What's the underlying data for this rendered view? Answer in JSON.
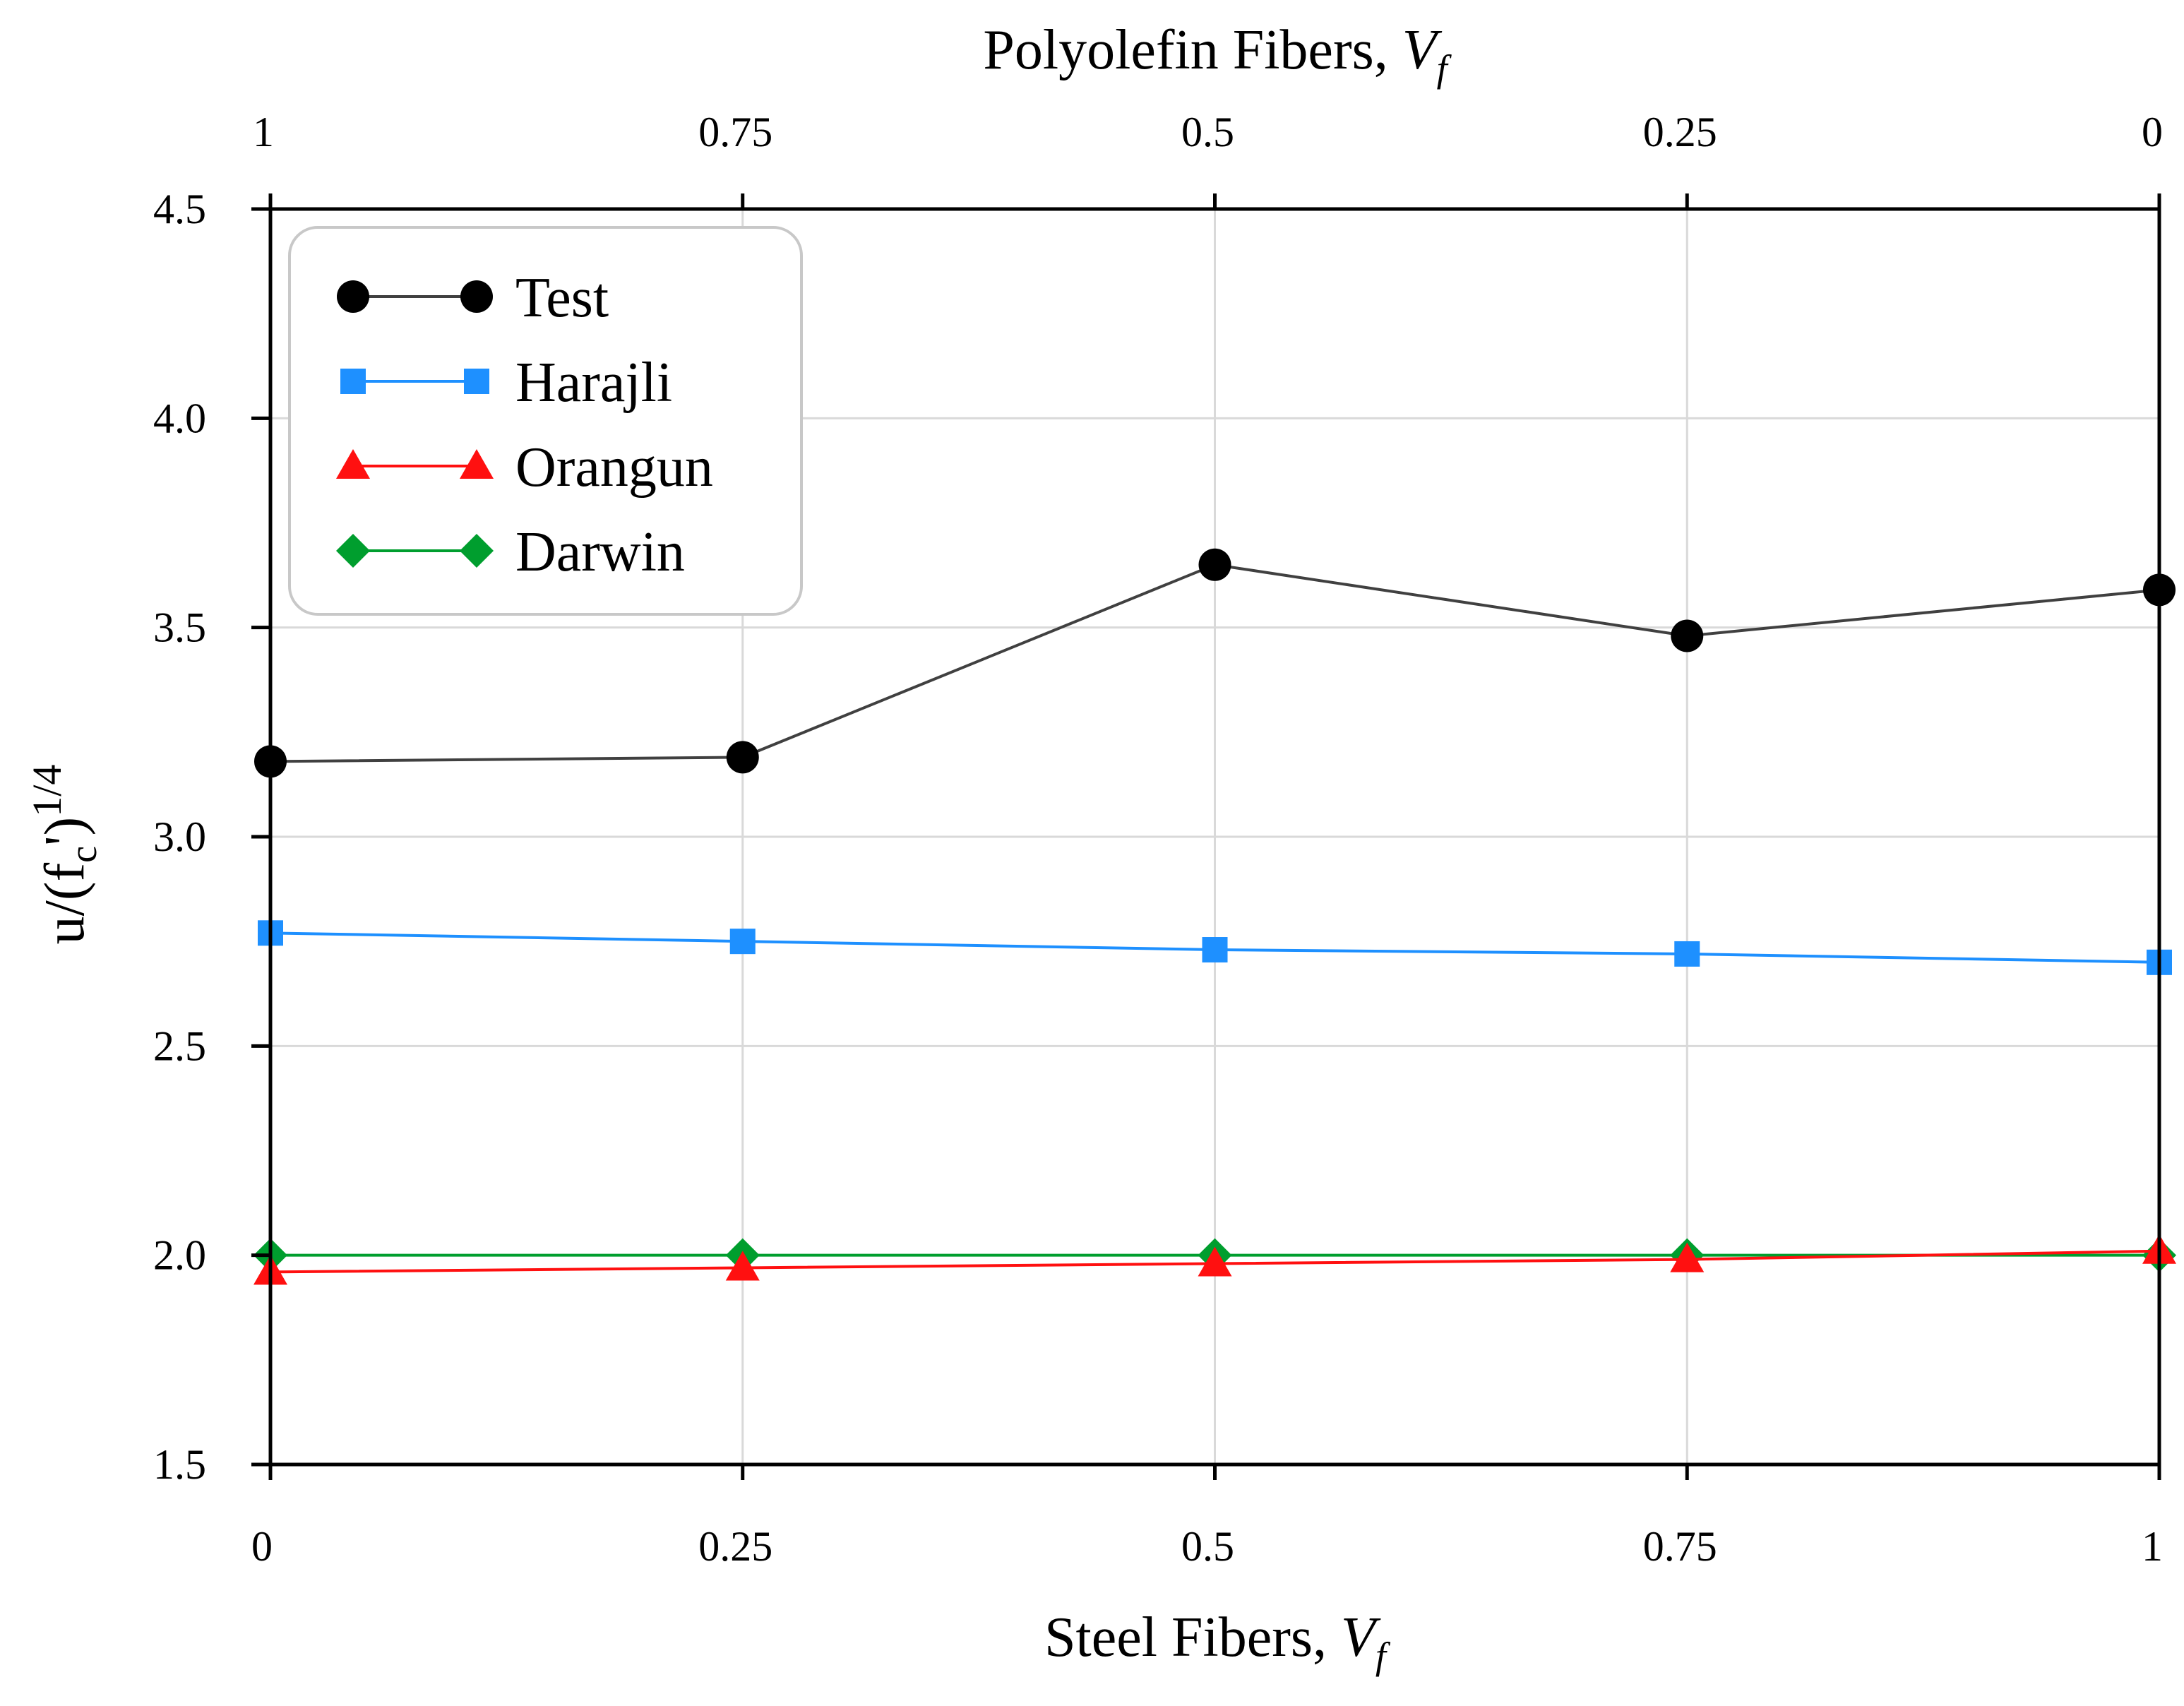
{
  "chart_data": {
    "type": "line",
    "title": "",
    "xlabel": "Steel Fibers, ",
    "xlabel_var": "V",
    "xlabel_sub": "f",
    "x2label": "Polyolefin Fibers, ",
    "x2label_var": "V",
    "x2label_sub": "f",
    "ylabel_main": "u/(f",
    "ylabel_sub": "c",
    "ylabel_prime": "')",
    "ylabel_sup": "1/4",
    "x": [
      0,
      0.25,
      0.5,
      0.75,
      1
    ],
    "x_tick_labels": [
      "0",
      "0.25",
      "0.5",
      "0.75",
      "1"
    ],
    "x2_tick_labels": [
      "1",
      "0.75",
      "0.5",
      "0.25",
      "0"
    ],
    "y_ticks": [
      1.5,
      2.0,
      2.5,
      3.0,
      3.5,
      4.0,
      4.5
    ],
    "y_tick_labels": [
      "1.5",
      "2.0",
      "2.5",
      "3.0",
      "3.5",
      "4.0",
      "4.5"
    ],
    "xlim": [
      0,
      1
    ],
    "ylim": [
      1.5,
      4.5
    ],
    "grid": true,
    "legend_position": "top-left",
    "series": [
      {
        "name": "Test",
        "marker": "circle",
        "color": "#000000",
        "line_color": "#404040",
        "values": [
          3.18,
          3.19,
          3.65,
          3.48,
          3.59
        ]
      },
      {
        "name": "Harajli",
        "marker": "square",
        "color": "#1E90FF",
        "line_color": "#1E90FF",
        "values": [
          2.77,
          2.75,
          2.73,
          2.72,
          2.7
        ]
      },
      {
        "name": "Orangun",
        "marker": "triangle",
        "color": "#FF1010",
        "line_color": "#FF1010",
        "values": [
          1.96,
          1.97,
          1.98,
          1.99,
          2.01
        ]
      },
      {
        "name": "Darwin",
        "marker": "diamond",
        "color": "#009E2E",
        "line_color": "#009E2E",
        "values": [
          2.0,
          2.0,
          2.0,
          2.0,
          2.0
        ]
      }
    ]
  }
}
